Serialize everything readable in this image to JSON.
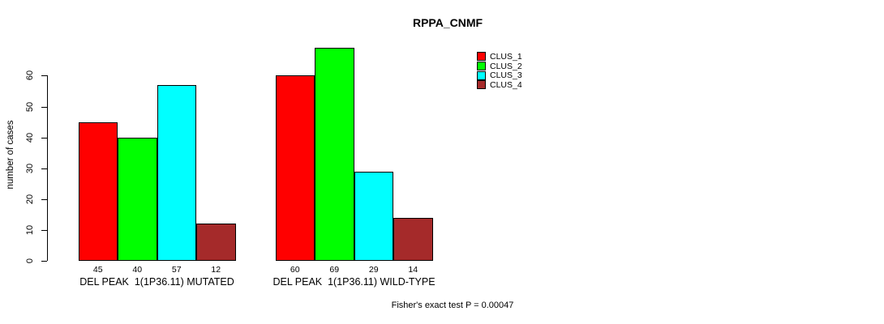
{
  "chart_data": {
    "type": "bar",
    "title": "RPPA_CNMF",
    "ylabel": "number of cases",
    "ylim": [
      0,
      70
    ],
    "yticks": [
      0,
      10,
      20,
      30,
      40,
      50,
      60
    ],
    "grid": false,
    "legend_position": "right",
    "bar_value_labels": true,
    "categories": [
      "DEL PEAK  1(1P36.11) MUTATED",
      "DEL PEAK  1(1P36.11) WILD-TYPE"
    ],
    "series": [
      {
        "name": "CLUS_1",
        "color": "#FF0000",
        "values": [
          45,
          60
        ]
      },
      {
        "name": "CLUS_2",
        "color": "#00FF00",
        "values": [
          40,
          69
        ]
      },
      {
        "name": "CLUS_3",
        "color": "#00FFFF",
        "values": [
          57,
          29
        ]
      },
      {
        "name": "CLUS_4",
        "color": "#A52A2A",
        "values": [
          12,
          14
        ]
      }
    ],
    "annotation": "Fisher's exact test P = 0.00047"
  }
}
